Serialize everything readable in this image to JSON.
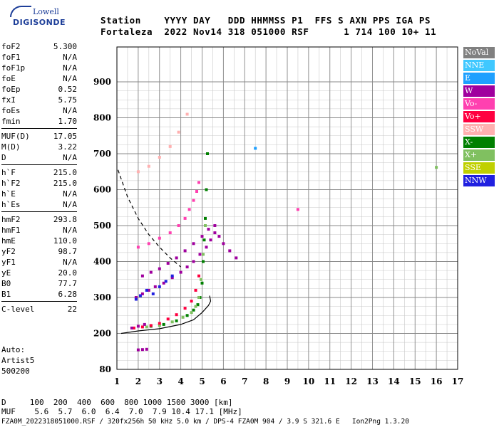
{
  "logo": {
    "top": "Lowell",
    "bottom": "DIGISONDE"
  },
  "header": {
    "line1": "Station    YYYY DAY   DDD HHMMSS P1  FFS S AXN PPS IGA PS",
    "line2": "Fortaleza  2022 Nov14 318 051000 RSF      1 714 100 10+ 11"
  },
  "params_groups": [
    [
      {
        "k": "foF2",
        "v": "5.300"
      },
      {
        "k": "foF1",
        "v": "N/A"
      },
      {
        "k": "foF1p",
        "v": "N/A"
      },
      {
        "k": "foE",
        "v": "N/A"
      },
      {
        "k": "foEp",
        "v": "0.52"
      },
      {
        "k": "fxI",
        "v": "5.75"
      },
      {
        "k": "foEs",
        "v": "N/A"
      },
      {
        "k": "fmin",
        "v": "1.70"
      }
    ],
    [
      {
        "k": "MUF(D)",
        "v": "17.05"
      },
      {
        "k": "M(D)",
        "v": "3.22"
      },
      {
        "k": "D",
        "v": "N/A"
      }
    ],
    [
      {
        "k": "h`F",
        "v": "215.0"
      },
      {
        "k": "h`F2",
        "v": "215.0"
      },
      {
        "k": "h`E",
        "v": "N/A"
      },
      {
        "k": "h`Es",
        "v": "N/A"
      }
    ],
    [
      {
        "k": "hmF2",
        "v": "293.8"
      },
      {
        "k": "hmF1",
        "v": "N/A"
      },
      {
        "k": "hmE",
        "v": "110.0"
      },
      {
        "k": "yF2",
        "v": "98.7"
      },
      {
        "k": "yF1",
        "v": "N/A"
      },
      {
        "k": "yE",
        "v": "20.0"
      },
      {
        "k": "B0",
        "v": "77.7"
      },
      {
        "k": "B1",
        "v": "6.28"
      }
    ],
    [
      {
        "k": "C-level",
        "v": "22"
      }
    ]
  ],
  "auto": {
    "l1": "Auto:",
    "l2": "Artist5",
    "l3": "500200"
  },
  "legend": [
    {
      "label": "NoVal",
      "color": "#808080"
    },
    {
      "label": "NNE",
      "color": "#40c8ff"
    },
    {
      "label": "E",
      "color": "#1ea0ff"
    },
    {
      "label": "W",
      "color": "#a0009e"
    },
    {
      "label": "Vo-",
      "color": "#ff40b0"
    },
    {
      "label": "Vo+",
      "color": "#ff0040"
    },
    {
      "label": "SSW",
      "color": "#ffb0b0"
    },
    {
      "label": "X-",
      "color": "#008000"
    },
    {
      "label": "X+",
      "color": "#80c060"
    },
    {
      "label": "SSE",
      "color": "#c0d000"
    },
    {
      "label": "NNW",
      "color": "#2020e0"
    }
  ],
  "chart_data": {
    "type": "scatter",
    "xlim": [
      1,
      17
    ],
    "ylim": [
      80,
      900
    ],
    "x_ticks": [
      1,
      2,
      3,
      4,
      5,
      6,
      7,
      8,
      9,
      10,
      11,
      12,
      13,
      14,
      15,
      16,
      17
    ],
    "y_ticks": [
      80,
      200,
      300,
      400,
      500,
      600,
      700,
      800,
      900
    ],
    "grid": true,
    "series": [
      {
        "mode": "X-",
        "color": "#008000",
        "x": [
          2.6,
          3.2,
          3.8,
          4.3,
          4.6,
          4.8,
          4.9,
          5.0,
          5.05,
          5.1,
          5.15,
          5.2,
          5.25
        ],
        "y": [
          220,
          225,
          235,
          250,
          265,
          280,
          300,
          340,
          400,
          460,
          520,
          600,
          700
        ]
      },
      {
        "mode": "X+",
        "color": "#80c060",
        "x": [
          2.4,
          3.0,
          3.6,
          4.1,
          4.5,
          4.7,
          4.85,
          4.95,
          5.05,
          5.15
        ],
        "y": [
          218,
          222,
          232,
          245,
          258,
          275,
          300,
          350,
          420,
          500
        ]
      },
      {
        "mode": "Vo+",
        "color": "#ff0040",
        "x": [
          1.8,
          2.2,
          2.6,
          3.0,
          3.4,
          3.8,
          4.2,
          4.5,
          4.7,
          4.85
        ],
        "y": [
          215,
          218,
          222,
          228,
          240,
          252,
          270,
          290,
          320,
          360
        ]
      },
      {
        "mode": "Vo-",
        "color": "#ff40b0",
        "x": [
          2.0,
          2.5,
          3.0,
          3.5,
          3.9,
          4.2,
          4.4,
          4.6,
          4.75,
          4.85
        ],
        "y": [
          440,
          450,
          465,
          480,
          500,
          520,
          545,
          570,
          595,
          620
        ]
      },
      {
        "mode": "SSW",
        "color": "#ffb0b0",
        "x": [
          2.0,
          2.5,
          3.0,
          3.5,
          3.9,
          4.3
        ],
        "y": [
          650,
          665,
          690,
          720,
          760,
          810
        ]
      },
      {
        "mode": "W",
        "color": "#a0009e",
        "x": [
          1.9,
          2.2,
          2.5,
          2.8,
          3.2,
          3.6,
          4.0,
          4.3,
          4.6,
          4.9,
          5.2,
          5.4,
          5.6,
          5.8,
          6.0,
          6.3,
          6.6,
          2.2,
          2.6,
          3.0,
          3.4,
          3.8,
          4.2,
          4.6,
          5.0,
          5.3,
          5.6,
          1.7,
          2.0,
          2.3,
          2.0,
          2.2,
          2.4
        ],
        "y": [
          300,
          310,
          320,
          330,
          340,
          355,
          370,
          385,
          400,
          420,
          440,
          460,
          480,
          470,
          450,
          430,
          410,
          360,
          370,
          380,
          395,
          410,
          430,
          450,
          470,
          490,
          500,
          215,
          220,
          225,
          145,
          146,
          147
        ]
      },
      {
        "mode": "NNW",
        "color": "#2020e0",
        "x": [
          1.9,
          2.1,
          2.4,
          2.7,
          3.0,
          3.3,
          3.6
        ],
        "y": [
          295,
          305,
          320,
          310,
          330,
          345,
          360
        ]
      },
      {
        "mode": "E",
        "color": "#1ea0ff",
        "x": [
          7.5
        ],
        "y": [
          715
        ]
      },
      {
        "mode": "Vo-",
        "color": "#ff40b0",
        "x": [
          9.5
        ],
        "y": [
          545
        ]
      },
      {
        "mode": "X+",
        "color": "#80c060",
        "x": [
          16.0
        ],
        "y": [
          662
        ]
      }
    ],
    "lines": [
      {
        "name": "profile-solid",
        "style": "solid",
        "x": [
          1.2,
          2.0,
          3.0,
          4.0,
          4.6,
          5.0,
          5.3,
          5.4,
          5.35
        ],
        "y": [
          200,
          207,
          213,
          225,
          238,
          258,
          278,
          290,
          305
        ]
      },
      {
        "name": "profile-dashed",
        "style": "dashed",
        "x": [
          1.05,
          1.5,
          2.0,
          2.5,
          3.0,
          3.5,
          4.0
        ],
        "y": [
          655,
          580,
          520,
          475,
          440,
          410,
          385
        ]
      }
    ]
  },
  "bottom": {
    "d_line": "D     100  200  400  600  800 1000 1500 3000 [km]",
    "muf_line": "MUF    5.6  5.7  6.0  6.4  7.0  7.9 10.4 17.1 [MHz]"
  },
  "footer": "FZA0M_2022318051000.RSF / 320fx256h 50 kHz 5.0 km / DPS-4 FZA0M 904 / 3.9 S 321.6 E   Ion2Png 1.3.20"
}
